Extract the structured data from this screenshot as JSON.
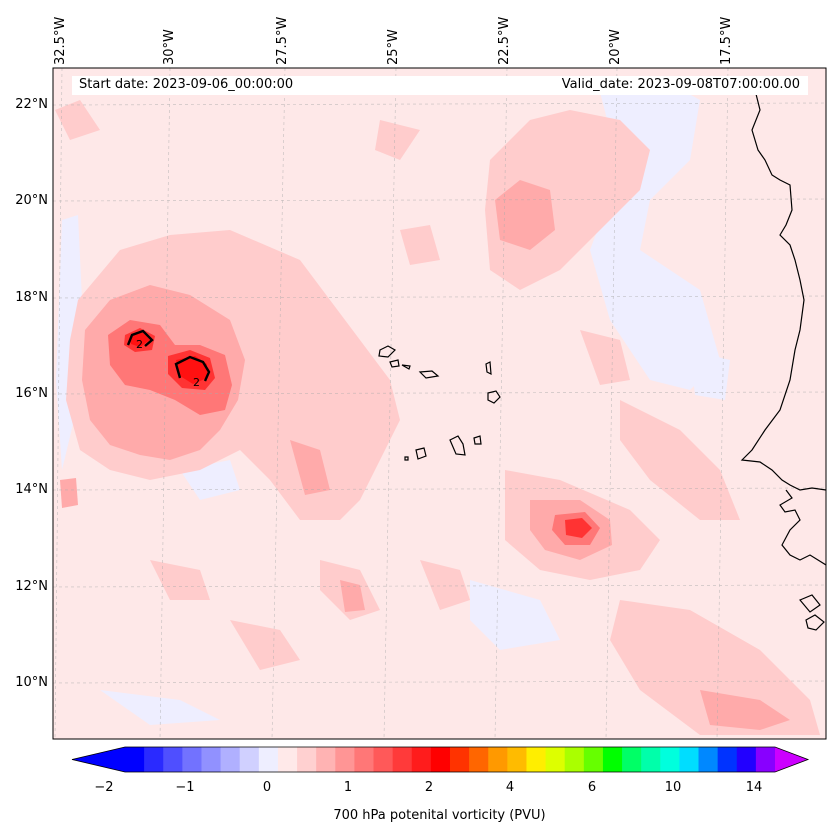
{
  "map": {
    "start_date": "Start date: 2023-09-06_00:00:00",
    "valid_date": "Valid_date: 2023-09-08T07:00:00.00",
    "lon_labels": [
      "32.5°W",
      "30°W",
      "27.5°W",
      "25°W",
      "22.5°W",
      "20°W",
      "17.5°W"
    ],
    "lat_labels": [
      "22°N",
      "20°N",
      "18°N",
      "16°N",
      "14°N",
      "12°N",
      "10°N"
    ],
    "contour_labels": [
      "2",
      "2"
    ],
    "colors": {
      "background": "#fee8e8",
      "light_red": "#ffcccc",
      "mid_red": "#ffaaaa",
      "red": "#ff7777",
      "strong_red": "#ff3333",
      "light_blue": "#eeeeff",
      "coastline": "#000000"
    }
  },
  "colorbar": {
    "label": "700 hPa potenital vorticity (PVU)",
    "ticks": [
      "−2",
      "−1",
      "0",
      "1",
      "2",
      "4",
      "6",
      "10",
      "14"
    ],
    "colors": [
      "#0000ff",
      "#2a2aff",
      "#4f4fff",
      "#7272ff",
      "#9191ff",
      "#b0b0ff",
      "#d0d0ff",
      "#eeeeff",
      "#ffe9e9",
      "#ffd0d0",
      "#ffb3b3",
      "#ff9595",
      "#ff7777",
      "#ff5959",
      "#ff3a3a",
      "#ff1c1c",
      "#ff0000",
      "#ff3300",
      "#ff6600",
      "#ff9900",
      "#ffbb00",
      "#ffee00",
      "#ddff00",
      "#aaff00",
      "#66ff00",
      "#00ff00",
      "#00ff66",
      "#00ffaa",
      "#00ffdd",
      "#00ddff",
      "#0088ff",
      "#0033ff",
      "#2200ff",
      "#8800ff"
    ],
    "under_color": "#0000ff",
    "over_color": "#cc00ff"
  }
}
